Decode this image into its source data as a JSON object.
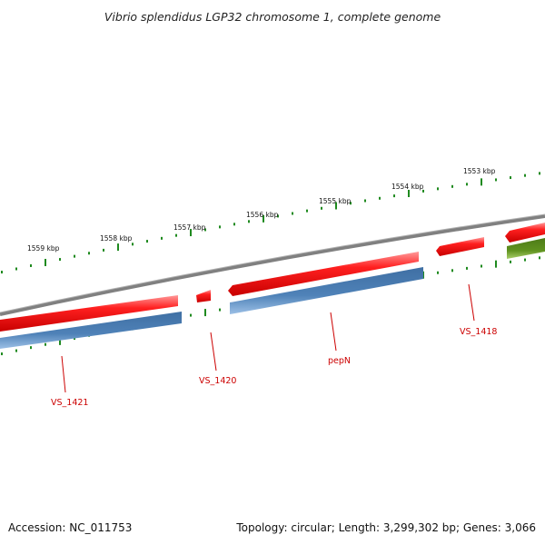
{
  "title": "Vibrio splendidus LGP32 chromosome 1, complete genome",
  "footer": {
    "accession_label": "Accession: NC_011753",
    "summary_label": "Topology: circular; Length: 3,299,302 bp; Genes: 3,066"
  },
  "colors": {
    "forward_gene": "#ee1111",
    "reverse_gene": "#4f82b8",
    "other_gene": "#5a8a1c",
    "backbone": "#808080",
    "ticks": "#1f8a1f",
    "gene_label": "#cc0000"
  },
  "scale_labels": [
    "1559 kbp",
    "1558 kbp",
    "1557 kbp",
    "1556 kbp",
    "1555 kbp",
    "1554 kbp",
    "1553 kbp"
  ],
  "gene_labels": [
    "VS_1421",
    "VS_1420",
    "pepN",
    "VS_1418"
  ]
}
